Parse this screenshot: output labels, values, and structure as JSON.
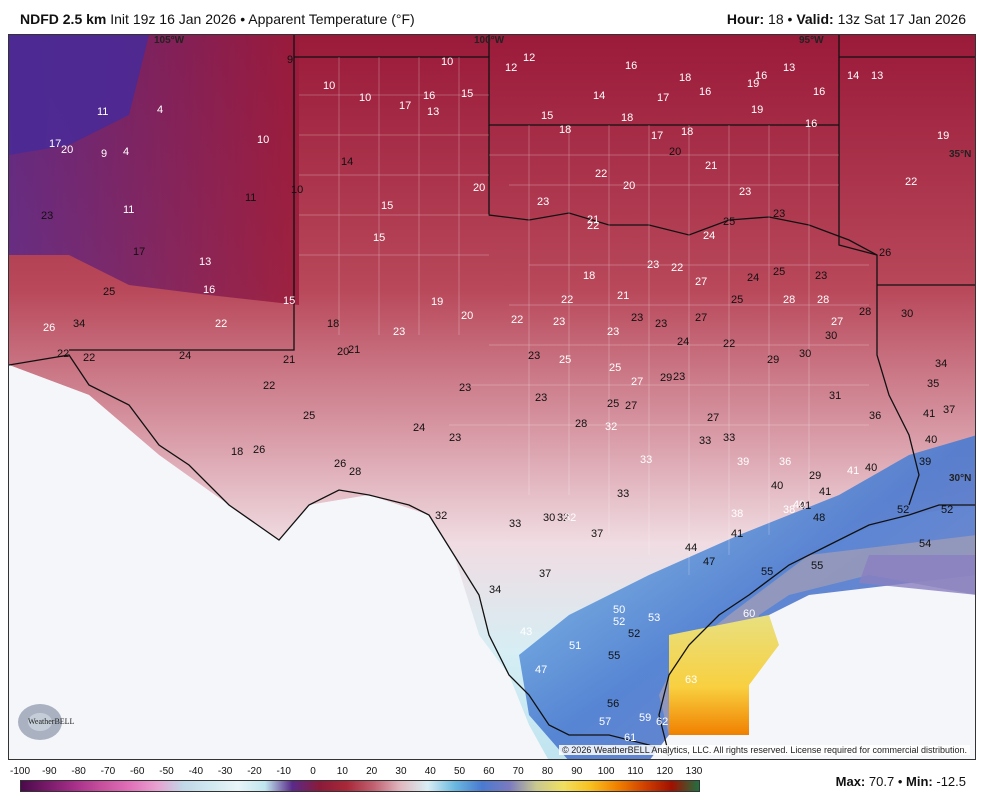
{
  "header": {
    "model": "NDFD 2.5 km",
    "init": "Init 19z 16 Jan 2026",
    "bullet": "•",
    "product": "Apparent Temperature (°F)",
    "hour_label": "Hour:",
    "hour_value": "18",
    "valid_label": "Valid:",
    "valid_value": "13z Sat 17 Jan 2026"
  },
  "map": {
    "lon_labels": [
      "105°W",
      "100°W",
      "95°W"
    ],
    "lat_labels": [
      "35°N",
      "30°N"
    ],
    "copyright": "© 2026 WeatherBELL Analytics, LLC. All rights reserved. License required for commercial distribution.",
    "logo_text": "WeatherBELL",
    "station_values": [
      "9",
      "10",
      "12",
      "12",
      "16",
      "18",
      "16",
      "13",
      "14",
      "13",
      "10",
      "10",
      "17",
      "16",
      "15",
      "14",
      "17",
      "16",
      "19",
      "16",
      "11",
      "4",
      "13",
      "15",
      "18",
      "18",
      "17",
      "18",
      "19",
      "17",
      "20",
      "9",
      "4",
      "10",
      "16",
      "14",
      "21",
      "20",
      "19",
      "11",
      "11",
      "10",
      "20",
      "23",
      "22",
      "20",
      "23",
      "23",
      "22",
      "23",
      "15",
      "15",
      "21",
      "22",
      "24",
      "25",
      "26",
      "17",
      "13",
      "18",
      "23",
      "22",
      "27",
      "24",
      "25",
      "23",
      "25",
      "25",
      "16",
      "15",
      "19",
      "20",
      "22",
      "21",
      "28",
      "28",
      "27",
      "26",
      "34",
      "22",
      "18",
      "23",
      "22",
      "23",
      "23",
      "23",
      "23",
      "28",
      "27",
      "24",
      "22",
      "20",
      "21",
      "24",
      "23",
      "30",
      "30",
      "22",
      "22",
      "21",
      "23",
      "25",
      "25",
      "27",
      "29",
      "29",
      "34",
      "25",
      "22",
      "23",
      "23",
      "25",
      "27",
      "27",
      "31",
      "30",
      "35",
      "18",
      "26",
      "24",
      "23",
      "28",
      "32",
      "33",
      "33",
      "36",
      "37",
      "26",
      "28",
      "32",
      "30",
      "33",
      "37",
      "39",
      "40",
      "38",
      "40",
      "29",
      "32",
      "33",
      "38",
      "41",
      "40",
      "41",
      "41",
      "52",
      "52",
      "37",
      "34",
      "44",
      "47",
      "55",
      "55",
      "48",
      "54",
      "50",
      "52",
      "43",
      "53",
      "52",
      "60",
      "51",
      "55",
      "47",
      "63",
      "56",
      "59",
      "57",
      "62",
      "61",
      "33",
      "32",
      "40",
      "41",
      "36",
      "39",
      "41"
    ]
  },
  "legend": {
    "ticks": [
      "-100",
      "-90",
      "-80",
      "-70",
      "-60",
      "-50",
      "-40",
      "-30",
      "-20",
      "-10",
      "0",
      "10",
      "20",
      "30",
      "40",
      "50",
      "60",
      "70",
      "80",
      "90",
      "100",
      "110",
      "120",
      "130"
    ],
    "colors": [
      "#4a0a4a",
      "#7a1a6a",
      "#a8308a",
      "#c8509e",
      "#e070b8",
      "#e8a0d0",
      "#c0d8e8",
      "#d0e8f0",
      "#e8f4f8",
      "#bfe6ee",
      "#5a2a8a",
      "#8a1a3a",
      "#a82838",
      "#c06070",
      "#e0b8c0",
      "#d8eef4",
      "#6ab8e0",
      "#4a7ad0",
      "#7a7ac0",
      "#c8c890",
      "#f0e060",
      "#f8c020",
      "#f08000",
      "#d04000",
      "#a01000",
      "#207040"
    ]
  },
  "stats": {
    "max_label": "Max:",
    "max_value": "70.7",
    "min_label": "Min:",
    "min_value": "-12.5"
  }
}
